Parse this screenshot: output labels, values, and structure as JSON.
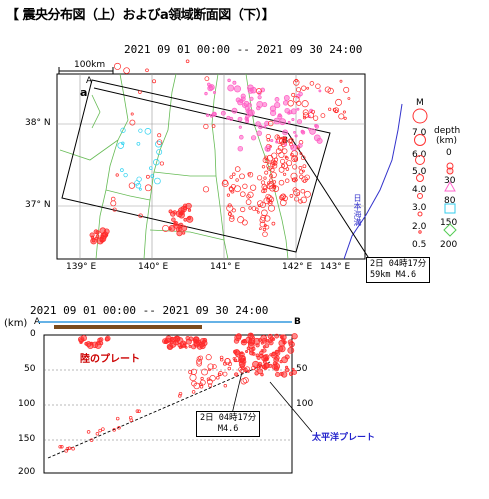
{
  "title": "【 震央分布図（上）およびa領域断面図（下）】",
  "map": {
    "period": "2021  09  01  00:00   --   2021  09  30  24:00",
    "scale_label": "100km",
    "corner_a": "a",
    "point_A": "A",
    "point_B": "B",
    "lat_labels": [
      "38° N",
      "37° N"
    ],
    "lon_labels": [
      "139° E",
      "140° E",
      "141° E",
      "142° E",
      "143° E"
    ],
    "trench_label": "日本海溝",
    "callout": {
      "line1": "2日 04時17分",
      "line2": "59km   M4.6"
    }
  },
  "legend": {
    "mag_title": "M",
    "mag_values": [
      "7.0",
      "6.0",
      "5.0",
      "4.0",
      "3.0",
      "2.0",
      "0.5"
    ],
    "depth_title": "depth",
    "depth_unit": "(km)",
    "depth_values": [
      "0",
      "30",
      "80",
      "150",
      "200"
    ],
    "depth_colors": [
      "#ff3333",
      "#ff3333",
      "#ff66cc",
      "#33ccee",
      "#55cc55"
    ]
  },
  "section": {
    "period": "2021  09  01  00:00   --   2021  09  30  24:00",
    "y_unit": "(km)",
    "end_A": "A",
    "end_B": "B",
    "y_ticks": [
      "0",
      "50",
      "100",
      "150",
      "200"
    ],
    "land_plate_label": "陸のプレート",
    "pacific_plate_label": "太平洋プレート",
    "callout": {
      "line1": "2日  04時17分",
      "line2": "M4.6"
    }
  },
  "colors": {
    "shallow": "#ff2a2a",
    "mid": "#ff5ec4",
    "deep": "#2ad1f0",
    "plate_blue": "#2222cc"
  }
}
